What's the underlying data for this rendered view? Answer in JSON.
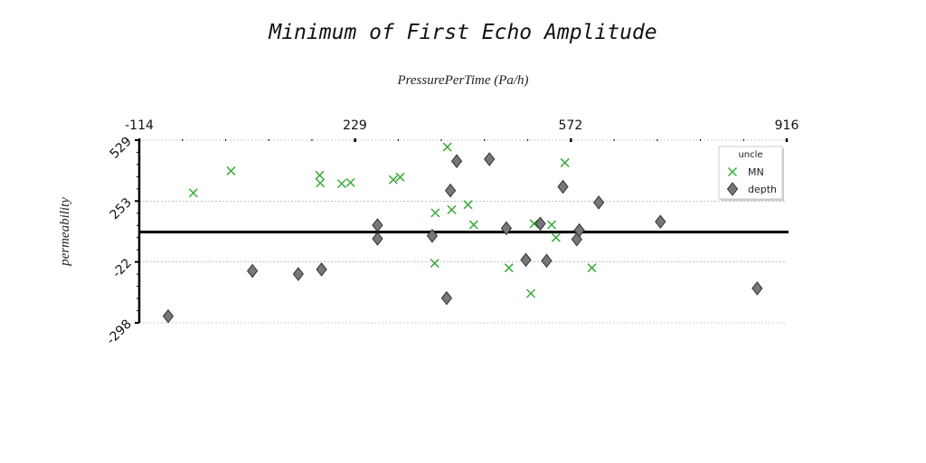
{
  "chart_data": {
    "type": "scatter",
    "title": "Minimum of First Echo Amplitude",
    "xlabel": "PressurePerTime (Pa/h)",
    "ylabel": "permeability",
    "x_axis_position": "top",
    "xlim": [
      -114,
      916
    ],
    "ylim": [
      -298,
      529
    ],
    "x_ticks": [
      "-114",
      "229",
      "572",
      "916"
    ],
    "y_ticks": [
      "-298",
      "-22",
      "253",
      "529"
    ],
    "grid": "horizontal dashed at y ticks",
    "reference_line_y": 113,
    "legend": {
      "title": "uncle",
      "position": "top-right"
    },
    "series": [
      {
        "name": "MN",
        "marker": "x",
        "color": "#3aaa3a",
        "points": [
          {
            "x": -28,
            "y": 290
          },
          {
            "x": 32,
            "y": 390
          },
          {
            "x": 173,
            "y": 370
          },
          {
            "x": 174,
            "y": 335
          },
          {
            "x": 208,
            "y": 332
          },
          {
            "x": 222,
            "y": 337
          },
          {
            "x": 290,
            "y": 350
          },
          {
            "x": 301,
            "y": 362
          },
          {
            "x": 357,
            "y": 200
          },
          {
            "x": 356,
            "y": -28
          },
          {
            "x": 376,
            "y": 498
          },
          {
            "x": 383,
            "y": 214
          },
          {
            "x": 409,
            "y": 237
          },
          {
            "x": 418,
            "y": 146
          },
          {
            "x": 474,
            "y": -49
          },
          {
            "x": 509,
            "y": -165
          },
          {
            "x": 514,
            "y": 151
          },
          {
            "x": 542,
            "y": 146
          },
          {
            "x": 549,
            "y": 88
          },
          {
            "x": 563,
            "y": 427
          },
          {
            "x": 606,
            "y": -49
          }
        ]
      },
      {
        "name": "depth",
        "marker": "diamond",
        "color": "#777777",
        "points": [
          {
            "x": -68,
            "y": -268
          },
          {
            "x": 66,
            "y": -63
          },
          {
            "x": 139,
            "y": -77
          },
          {
            "x": 176,
            "y": -56
          },
          {
            "x": 265,
            "y": 144
          },
          {
            "x": 265,
            "y": 83
          },
          {
            "x": 352,
            "y": 96
          },
          {
            "x": 375,
            "y": -186
          },
          {
            "x": 381,
            "y": 301
          },
          {
            "x": 391,
            "y": 434
          },
          {
            "x": 443,
            "y": 443
          },
          {
            "x": 470,
            "y": 130
          },
          {
            "x": 501,
            "y": -13
          },
          {
            "x": 524,
            "y": 151
          },
          {
            "x": 534,
            "y": -17
          },
          {
            "x": 560,
            "y": 318
          },
          {
            "x": 582,
            "y": 80
          },
          {
            "x": 586,
            "y": 121
          },
          {
            "x": 617,
            "y": 247
          },
          {
            "x": 715,
            "y": 160
          },
          {
            "x": 869,
            "y": -142
          }
        ]
      }
    ]
  }
}
